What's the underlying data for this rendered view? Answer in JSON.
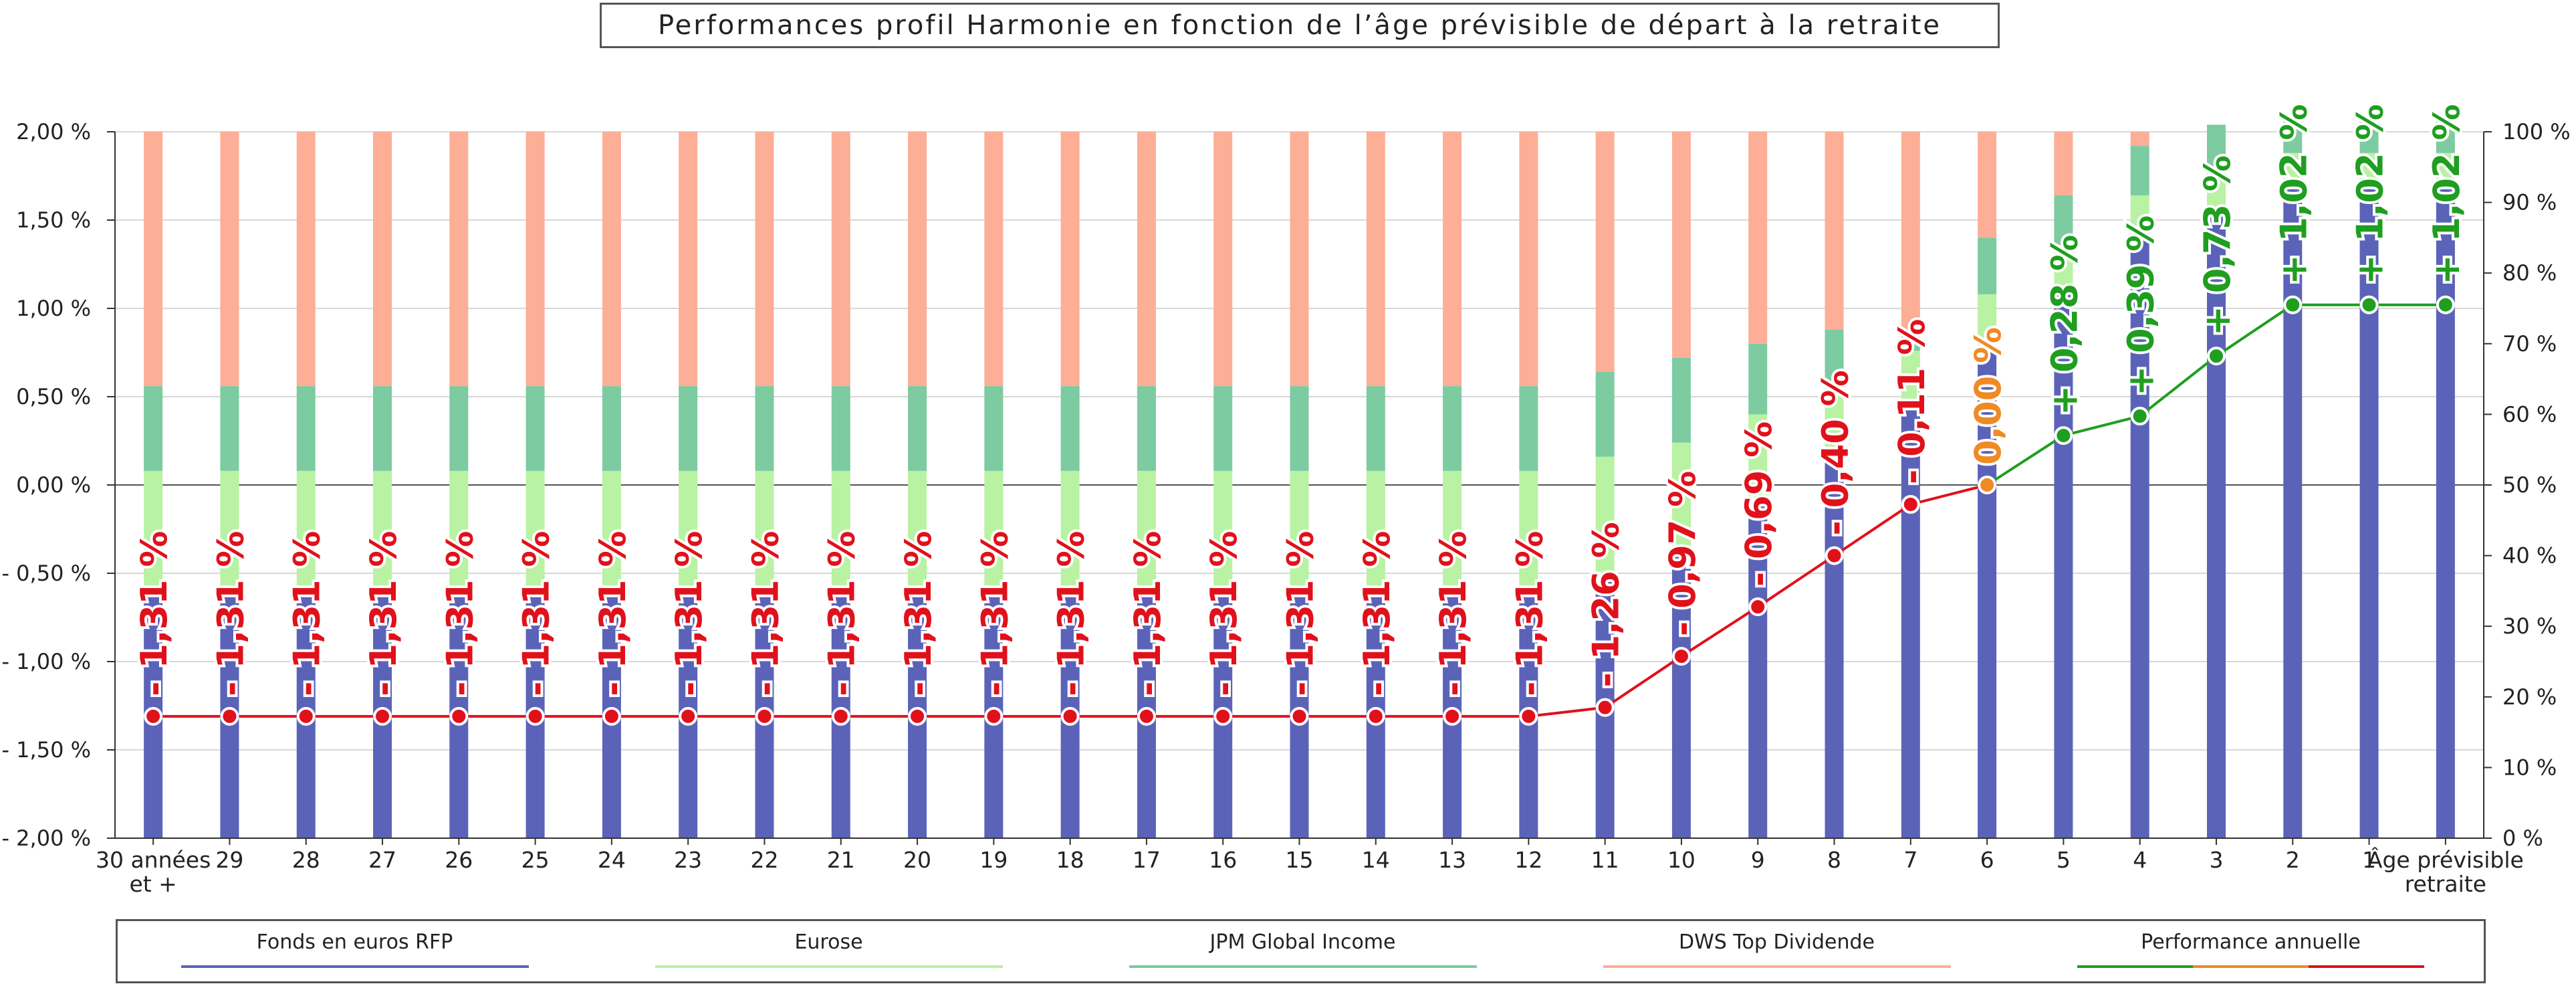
{
  "chart_data": {
    "type": "bar",
    "title": "Performances profil Harmonie en fonction de l’âge prévisible de départ à la retraite",
    "categories": [
      "30 années et +",
      "29",
      "28",
      "27",
      "26",
      "25",
      "24",
      "23",
      "22",
      "21",
      "20",
      "19",
      "18",
      "17",
      "16",
      "15",
      "14",
      "13",
      "12",
      "11",
      "10",
      "9",
      "8",
      "7",
      "6",
      "5",
      "4",
      "3",
      "2",
      "1",
      "Âge prévisible retraite"
    ],
    "left_axis": {
      "ticks": [
        "2,00 %",
        "1,50 %",
        "1,00 %",
        "0,50 %",
        "0,00 %",
        "- 0,50 %",
        "- 1,00 %",
        "- 1,50 %",
        "- 2,00 %"
      ],
      "range": [
        -2,
        2
      ]
    },
    "right_axis": {
      "ticks": [
        "100 %",
        "90 %",
        "80 %",
        "70 %",
        "60 %",
        "50 %",
        "40 %",
        "30 %",
        "20 %",
        "10 %",
        "0 %"
      ],
      "range": [
        0,
        100
      ]
    },
    "bar_series": [
      {
        "name": "Fonds en euros RFP",
        "color": "#5b63b8",
        "values": [
          35,
          35,
          35,
          35,
          35,
          35,
          35,
          35,
          35,
          35,
          35,
          35,
          35,
          35,
          35,
          35,
          35,
          35,
          35,
          37,
          40,
          47,
          54,
          61,
          69,
          77,
          85,
          89,
          92,
          92,
          92
        ]
      },
      {
        "name": "Eurose",
        "color": "#b8f2a2",
        "values": [
          17,
          17,
          17,
          17,
          17,
          17,
          17,
          17,
          17,
          17,
          17,
          17,
          17,
          17,
          17,
          17,
          17,
          17,
          17,
          17,
          16,
          13,
          10,
          8,
          8,
          7,
          6,
          6,
          5,
          5,
          5
        ]
      },
      {
        "name": "JPM Global Income",
        "color": "#7dcba0",
        "values": [
          12,
          12,
          12,
          12,
          12,
          12,
          12,
          12,
          12,
          12,
          12,
          12,
          12,
          12,
          12,
          12,
          12,
          12,
          12,
          12,
          12,
          10,
          8,
          3,
          8,
          7,
          7,
          6,
          5,
          5,
          5
        ]
      },
      {
        "name": "DWS Top Dividende",
        "color": "#fdae96",
        "values": [
          36,
          36,
          36,
          36,
          36,
          36,
          36,
          36,
          36,
          36,
          36,
          36,
          36,
          36,
          36,
          36,
          36,
          36,
          36,
          34,
          32,
          30,
          28,
          28,
          15,
          9,
          2,
          0,
          0,
          0,
          0
        ]
      }
    ],
    "line_series": {
      "name": "Performance annuelle",
      "values": [
        -1.31,
        -1.31,
        -1.31,
        -1.31,
        -1.31,
        -1.31,
        -1.31,
        -1.31,
        -1.31,
        -1.31,
        -1.31,
        -1.31,
        -1.31,
        -1.31,
        -1.31,
        -1.31,
        -1.31,
        -1.31,
        -1.31,
        -1.26,
        -0.97,
        -0.69,
        -0.4,
        -0.11,
        0.0,
        0.28,
        0.39,
        0.73,
        1.02,
        1.02,
        1.02
      ],
      "plotted_left_axis": [
        -1.31,
        -1.31,
        -1.31,
        -1.31,
        -1.31,
        -1.31,
        -1.31,
        -1.31,
        -1.31,
        -1.31,
        -1.31,
        -1.31,
        -1.31,
        -1.31,
        -1.31,
        -1.31,
        -1.31,
        -1.31,
        -1.31,
        -1.26,
        -0.97,
        -0.69,
        -0.4,
        -0.11,
        0.0,
        0.28,
        0.39,
        0.73,
        1.02,
        1.02,
        1.02
      ],
      "labels": [
        "- 1,31 %",
        "- 1,31 %",
        "- 1,31 %",
        "- 1,31 %",
        "- 1,31 %",
        "- 1,31 %",
        "- 1,31 %",
        "- 1,31 %",
        "- 1,31 %",
        "- 1,31 %",
        "- 1,31 %",
        "- 1,31 %",
        "- 1,31 %",
        "- 1,31 %",
        "- 1,31 %",
        "- 1,31 %",
        "- 1,31 %",
        "- 1,31 %",
        "- 1,31 %",
        "- 1,26 %",
        "- 0,97 %",
        "- 0,69 %",
        "- 0,40 %",
        "- 0,11 %",
        "0,00 %",
        "+ 0,28 %",
        "+ 0,39 %",
        "+ 0,73 %",
        "+ 1,02 %",
        "+ 1,02 %",
        "+ 1,02 %"
      ],
      "colors": {
        "negative": "#e0111b",
        "zero": "#f08a24",
        "positive": "#1f9e1f"
      }
    },
    "grid": true,
    "legend_position": "bottom"
  }
}
